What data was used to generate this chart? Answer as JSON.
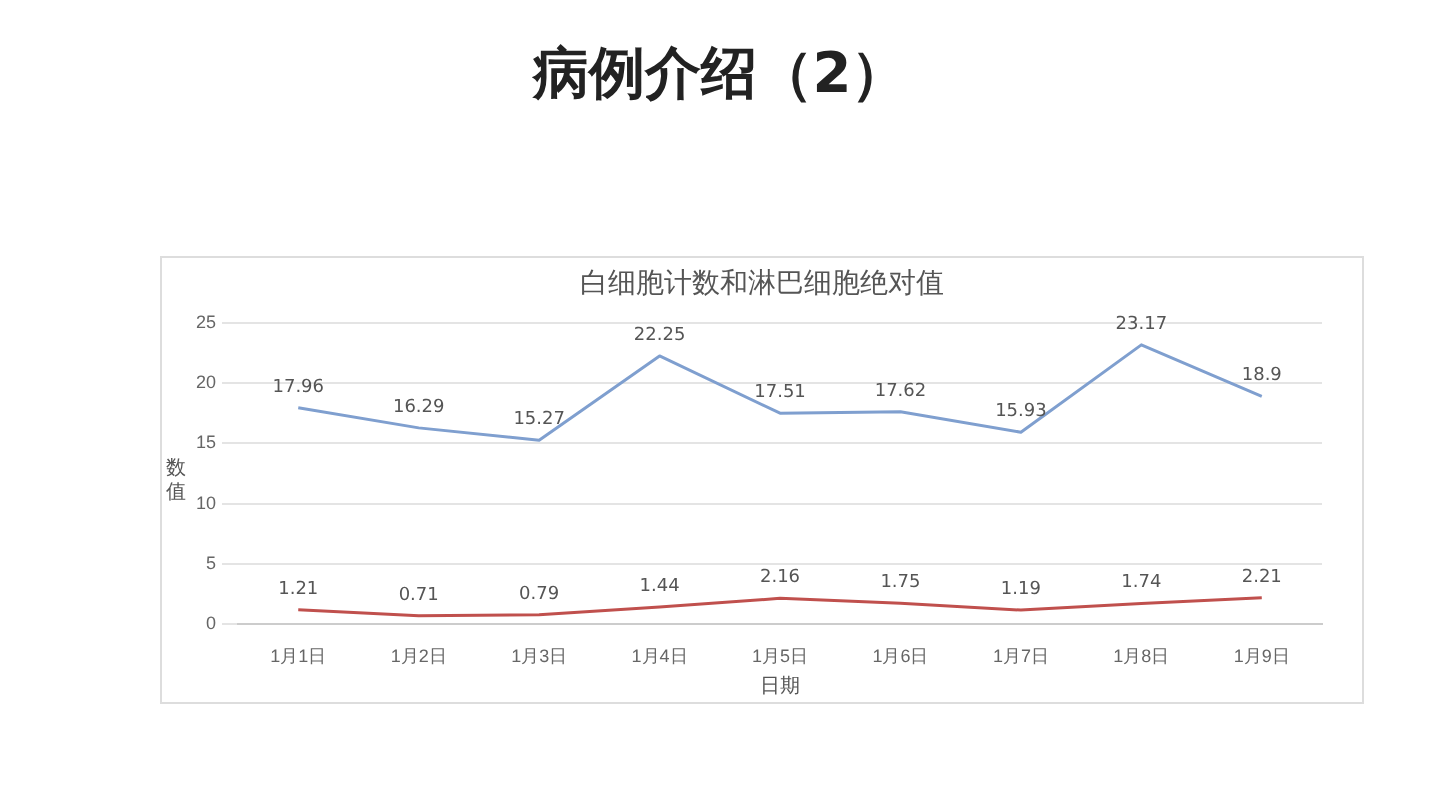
{
  "chart_data": {
    "type": "line",
    "title": "病例介绍（2）",
    "subtitle": "白细胞计数和淋巴细胞绝对值",
    "xlabel": "日期",
    "ylabel": "数值",
    "categories": [
      "1月1日",
      "1月2日",
      "1月3日",
      "1月4日",
      "1月5日",
      "1月6日",
      "1月7日",
      "1月8日",
      "1月9日"
    ],
    "series": [
      {
        "color": "#7f9fcf",
        "values": [
          17.96,
          16.29,
          15.27,
          22.25,
          17.51,
          17.62,
          15.93,
          23.17,
          18.9
        ]
      },
      {
        "color": "#c0504d",
        "values": [
          1.21,
          0.71,
          0.79,
          1.44,
          2.16,
          1.75,
          1.19,
          1.74,
          2.21
        ]
      }
    ],
    "ylim": [
      0,
      25
    ],
    "yticks": [
      0,
      5,
      10,
      15,
      20,
      25
    ],
    "grid": "y",
    "legend": false,
    "marker": "none",
    "line_style": "solid",
    "data_labels": true
  }
}
